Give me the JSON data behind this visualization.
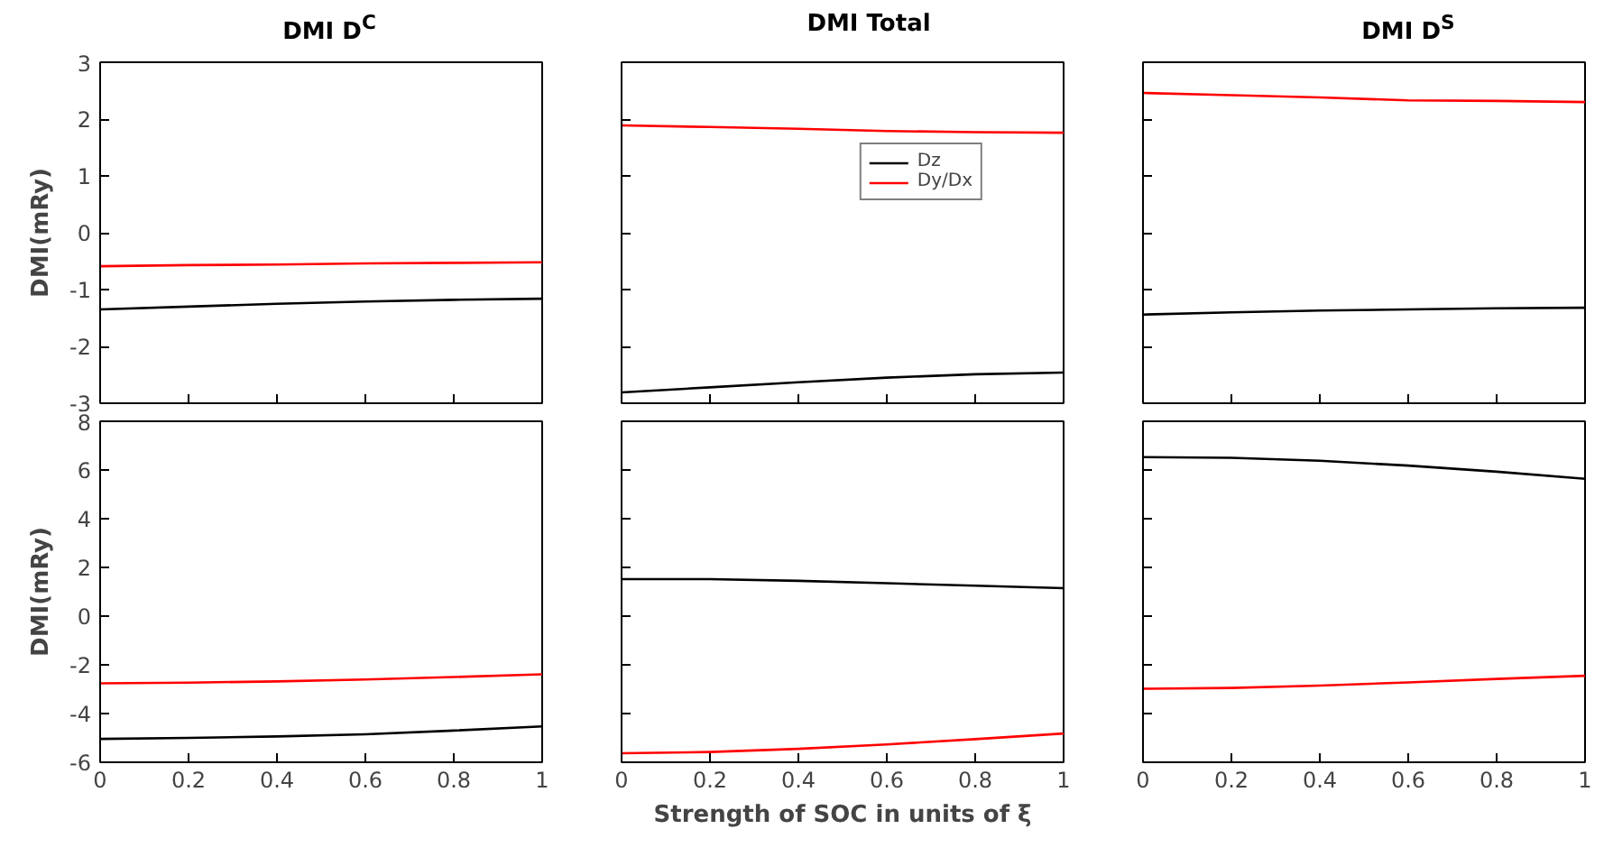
{
  "chart_data": [
    {
      "type": "line",
      "title": "DMI D$^{C}$",
      "ylabel": "DMI(mRy)",
      "xlim": [
        0,
        1
      ],
      "ylim": [
        -3,
        3
      ],
      "xticks": [
        0,
        0.2,
        0.4,
        0.6,
        0.8,
        1
      ],
      "yticks": [
        -3,
        -2,
        -1,
        0,
        1,
        2,
        3
      ],
      "tick_labels": "y",
      "grid": false,
      "x": [
        0,
        0.2,
        0.4,
        0.6,
        0.8,
        1
      ],
      "series": [
        {
          "color": "#000000",
          "values": [
            -1.35,
            -1.3,
            -1.25,
            -1.21,
            -1.18,
            -1.16
          ]
        },
        {
          "color": "#ff0000",
          "values": [
            -0.59,
            -0.57,
            -0.56,
            -0.54,
            -0.53,
            -0.52
          ]
        }
      ]
    },
    {
      "type": "line",
      "title": "DMI Total",
      "xlim": [
        0,
        1
      ],
      "ylim": [
        -3,
        3
      ],
      "xticks": [
        0,
        0.2,
        0.4,
        0.6,
        0.8,
        1
      ],
      "yticks": [
        -3,
        -2,
        -1,
        0,
        1,
        2,
        3
      ],
      "tick_labels": false,
      "grid": false,
      "legend": "top right",
      "x": [
        0,
        0.2,
        0.4,
        0.6,
        0.8,
        1
      ],
      "series": [
        {
          "name": "Dz",
          "color": "#000000",
          "values": [
            -2.81,
            -2.72,
            -2.63,
            -2.55,
            -2.49,
            -2.46
          ]
        },
        {
          "name": "Dy/Dx",
          "color": "#ff0000",
          "values": [
            1.89,
            1.86,
            1.83,
            1.79,
            1.77,
            1.76
          ]
        }
      ]
    },
    {
      "type": "line",
      "title": "DMI D$^{S}$",
      "xlim": [
        0,
        1
      ],
      "ylim": [
        -3,
        3
      ],
      "xticks": [
        0,
        0.2,
        0.4,
        0.6,
        0.8,
        1
      ],
      "yticks": [
        -3,
        -2,
        -1,
        0,
        1,
        2,
        3
      ],
      "tick_labels": false,
      "grid": false,
      "x": [
        0,
        0.2,
        0.4,
        0.6,
        0.8,
        1
      ],
      "series": [
        {
          "color": "#000000",
          "values": [
            -1.44,
            -1.4,
            -1.37,
            -1.35,
            -1.33,
            -1.32
          ]
        },
        {
          "color": "#ff0000",
          "values": [
            2.46,
            2.42,
            2.38,
            2.33,
            2.32,
            2.3
          ]
        }
      ]
    },
    {
      "type": "line",
      "ylabel": "DMI(mRy)",
      "xlim": [
        0,
        1
      ],
      "ylim": [
        -6,
        8
      ],
      "xticks": [
        0,
        0.2,
        0.4,
        0.6,
        0.8,
        1
      ],
      "yticks": [
        -6,
        -4,
        -2,
        0,
        2,
        4,
        6,
        8
      ],
      "grid": false,
      "x": [
        0,
        0.2,
        0.4,
        0.6,
        0.8,
        1
      ],
      "series": [
        {
          "color": "#000000",
          "values": [
            -5.04,
            -5.0,
            -4.94,
            -4.85,
            -4.7,
            -4.53
          ]
        },
        {
          "color": "#ff0000",
          "values": [
            -2.76,
            -2.73,
            -2.68,
            -2.6,
            -2.5,
            -2.39
          ]
        }
      ]
    },
    {
      "type": "line",
      "xlabel": "Strength of SOC in units of ξ",
      "xlim": [
        0,
        1
      ],
      "ylim": [
        -6,
        8
      ],
      "xticks": [
        0,
        0.2,
        0.4,
        0.6,
        0.8,
        1
      ],
      "yticks": [
        -6,
        -4,
        -2,
        0,
        2,
        4,
        6,
        8
      ],
      "tick_labels": "x",
      "grid": false,
      "x": [
        0,
        0.2,
        0.4,
        0.6,
        0.8,
        1
      ],
      "series": [
        {
          "color": "#000000",
          "values": [
            1.52,
            1.52,
            1.45,
            1.35,
            1.25,
            1.15
          ]
        },
        {
          "color": "#ff0000",
          "values": [
            -5.63,
            -5.58,
            -5.45,
            -5.27,
            -5.05,
            -4.82
          ]
        }
      ]
    },
    {
      "type": "line",
      "xlim": [
        0,
        1
      ],
      "ylim": [
        -6,
        8
      ],
      "xticks": [
        0,
        0.2,
        0.4,
        0.6,
        0.8,
        1
      ],
      "yticks": [
        -6,
        -4,
        -2,
        0,
        2,
        4,
        6,
        8
      ],
      "tick_labels": "x",
      "grid": false,
      "x": [
        0,
        0.2,
        0.4,
        0.6,
        0.8,
        1
      ],
      "series": [
        {
          "color": "#000000",
          "values": [
            6.53,
            6.5,
            6.38,
            6.18,
            5.93,
            5.64
          ]
        },
        {
          "color": "#ff0000",
          "values": [
            -2.98,
            -2.95,
            -2.85,
            -2.72,
            -2.58,
            -2.45
          ]
        }
      ]
    }
  ]
}
